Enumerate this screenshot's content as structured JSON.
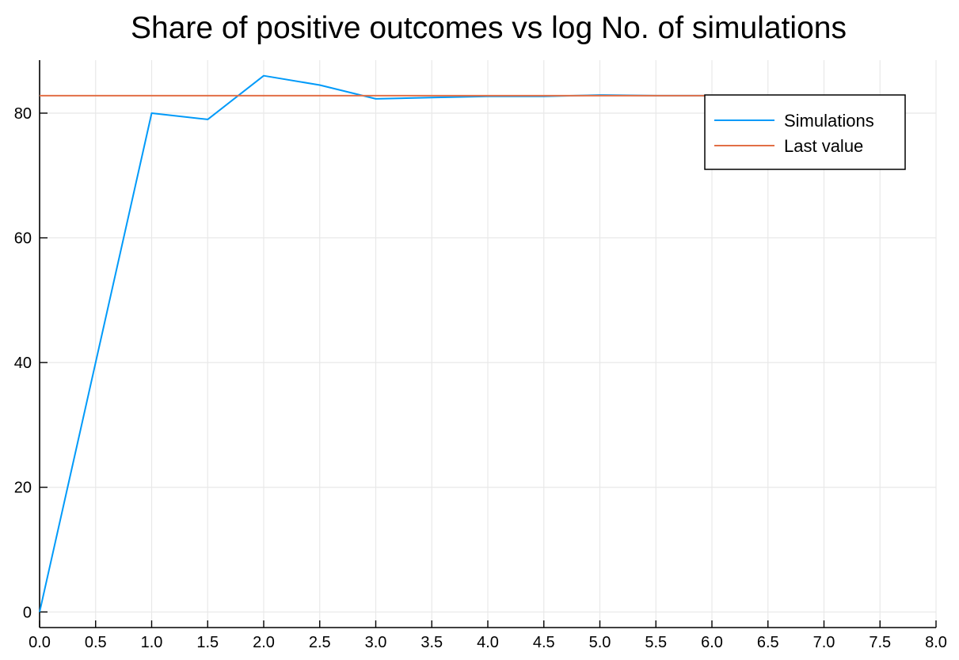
{
  "chart_data": {
    "type": "line",
    "title": "Share of positive outcomes vs log No. of simulations",
    "xlabel": "",
    "ylabel": "",
    "xlim": [
      0,
      8
    ],
    "ylim": [
      -2.5,
      88.5
    ],
    "x_ticks": [
      0.0,
      0.5,
      1.0,
      1.5,
      2.0,
      2.5,
      3.0,
      3.5,
      4.0,
      4.5,
      5.0,
      5.5,
      6.0,
      6.5,
      7.0,
      7.5,
      8.0
    ],
    "x_tick_labels": [
      "0.0",
      "0.5",
      "1.0",
      "1.5",
      "2.0",
      "2.5",
      "3.0",
      "3.5",
      "4.0",
      "4.5",
      "5.0",
      "5.5",
      "6.0",
      "6.5",
      "7.0",
      "7.5",
      "8.0"
    ],
    "y_ticks": [
      0,
      20,
      40,
      60,
      80
    ],
    "y_tick_labels": [
      "0",
      "20",
      "40",
      "60",
      "80"
    ],
    "grid": true,
    "legend_position": "top-right",
    "series": [
      {
        "name": "Simulations",
        "color": "#009af9",
        "x": [
          0.0,
          1.0,
          1.5,
          2.0,
          2.5,
          3.0,
          3.5,
          4.0,
          4.5,
          5.0,
          5.5,
          6.0
        ],
        "y": [
          0.0,
          80.0,
          79.0,
          86.0,
          84.5,
          82.3,
          82.5,
          82.7,
          82.7,
          82.9,
          82.8,
          82.8
        ]
      },
      {
        "name": "Last value",
        "color": "#e26f46",
        "x": [
          0.0,
          6.0
        ],
        "y": [
          82.8,
          82.8
        ]
      }
    ]
  }
}
